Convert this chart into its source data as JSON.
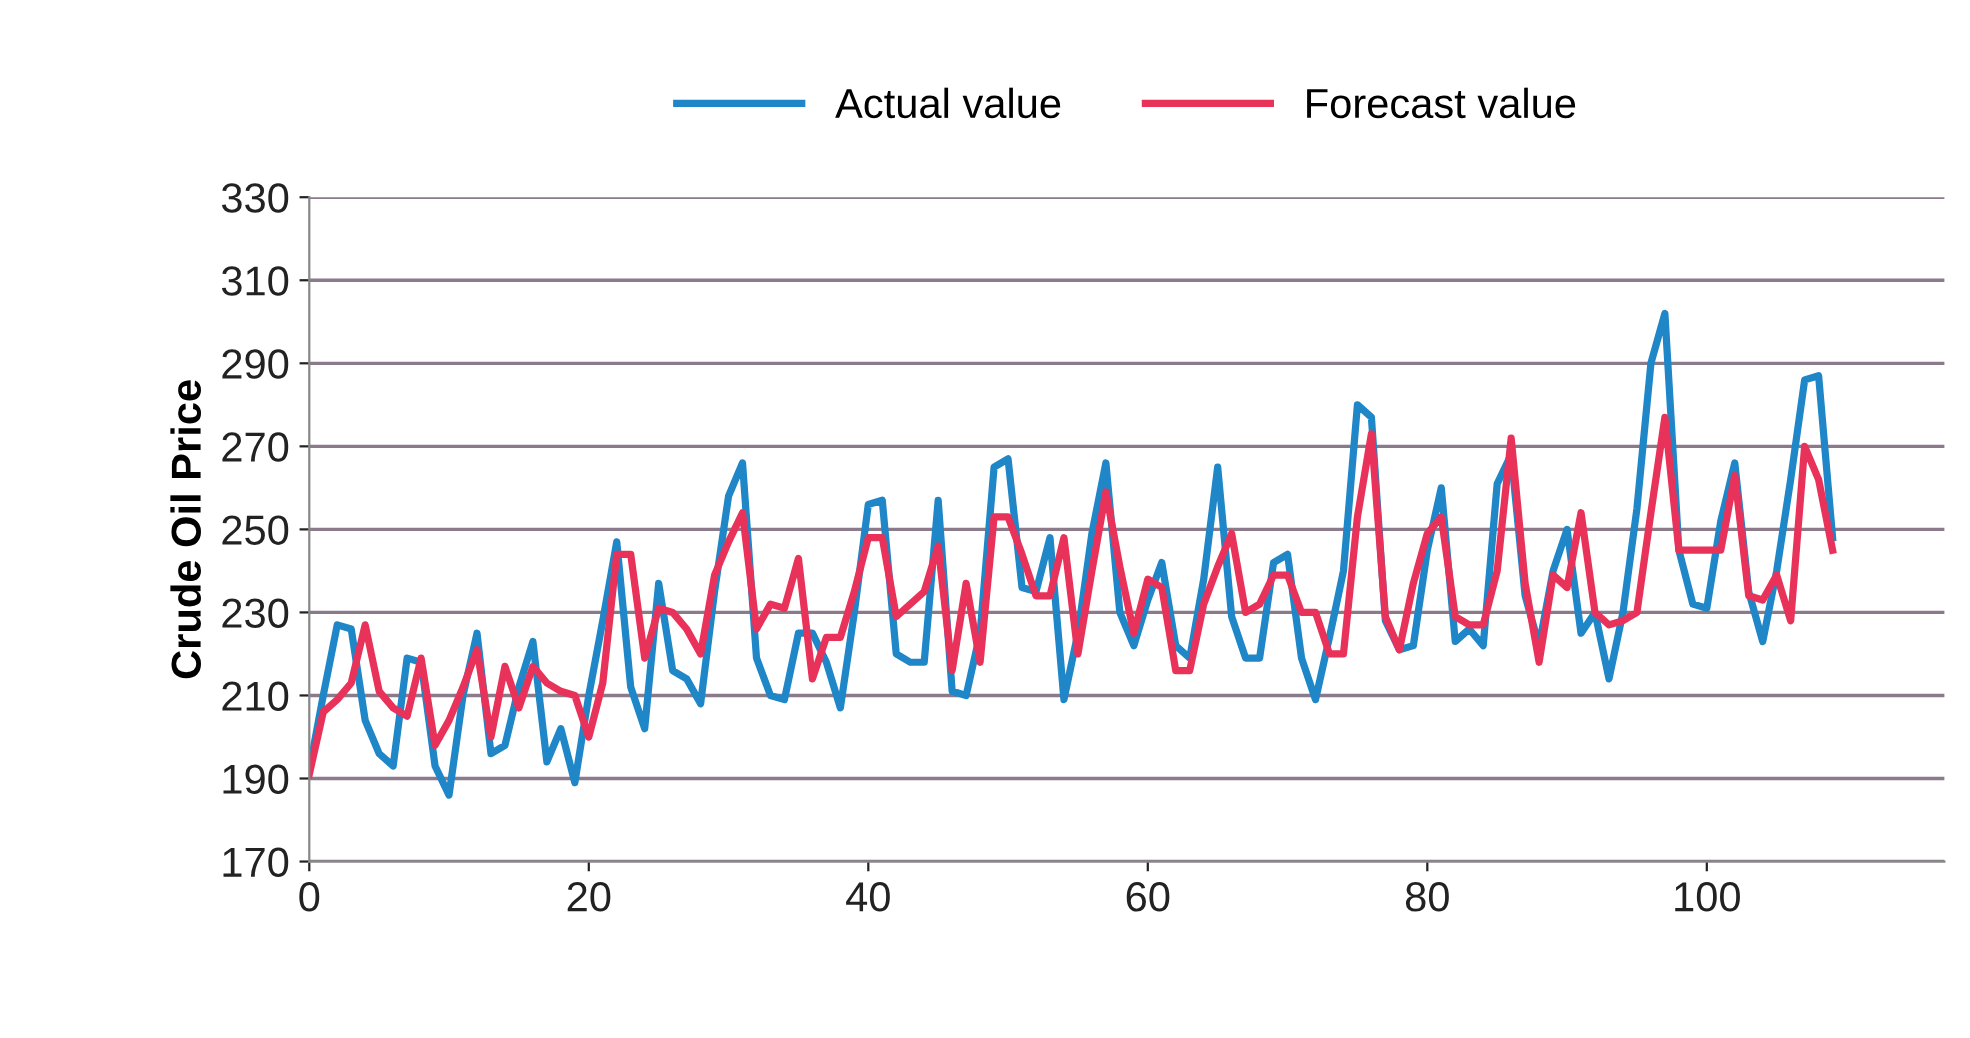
{
  "chart_data": {
    "type": "line",
    "ylabel": "Crude Oil Price",
    "x": [
      0,
      1,
      2,
      3,
      4,
      5,
      6,
      7,
      8,
      9,
      10,
      11,
      12,
      13,
      14,
      15,
      16,
      17,
      18,
      19,
      20,
      21,
      22,
      23,
      24,
      25,
      26,
      27,
      28,
      29,
      30,
      31,
      32,
      33,
      34,
      35,
      36,
      37,
      38,
      39,
      40,
      41,
      42,
      43,
      44,
      45,
      46,
      47,
      48,
      49,
      50,
      51,
      52,
      53,
      54,
      55,
      56,
      57,
      58,
      59,
      60,
      61,
      62,
      63,
      64,
      65,
      66,
      67,
      68,
      69,
      70,
      71,
      72,
      73,
      74,
      75,
      76,
      77,
      78,
      79,
      80,
      81,
      82,
      83,
      84,
      85,
      86,
      87,
      88,
      89,
      90,
      91,
      92,
      93,
      94,
      95,
      96,
      97,
      98,
      99,
      100,
      101,
      102,
      103,
      104,
      105,
      106,
      107,
      108,
      109
    ],
    "series": [
      {
        "name": "Actual value",
        "color": "#1f86c8",
        "values": [
          192,
          210,
          227,
          226,
          204,
          196,
          193,
          219,
          218,
          193,
          186,
          210,
          225,
          196,
          198,
          212,
          223,
          194,
          202,
          189,
          210,
          228,
          247,
          212,
          202,
          237,
          216,
          214,
          208,
          235,
          258,
          266,
          219,
          210,
          209,
          225,
          225,
          218,
          207,
          230,
          256,
          257,
          220,
          218,
          218,
          257,
          211,
          210,
          225,
          265,
          267,
          236,
          235,
          248,
          209,
          225,
          249,
          266,
          230,
          222,
          233,
          242,
          222,
          219,
          238,
          265,
          229,
          219,
          219,
          242,
          244,
          219,
          209,
          224,
          240,
          280,
          277,
          228,
          221,
          222,
          245,
          260,
          223,
          226,
          222,
          261,
          268,
          234,
          222,
          240,
          250,
          225,
          230,
          214,
          230,
          255,
          290,
          302,
          245,
          232,
          231,
          252,
          266,
          235,
          223,
          240,
          262,
          286,
          287,
          248
        ]
      },
      {
        "name": "Forecast value",
        "color": "#e8325a",
        "values": [
          191,
          206,
          209,
          213,
          227,
          211,
          207,
          205,
          219,
          198,
          204,
          212,
          221,
          200,
          217,
          207,
          217,
          213,
          211,
          210,
          200,
          213,
          244,
          244,
          219,
          231,
          230,
          226,
          220,
          239,
          247,
          254,
          226,
          232,
          231,
          243,
          214,
          224,
          224,
          235,
          248,
          248,
          229,
          232,
          235,
          246,
          216,
          237,
          218,
          253,
          253,
          244,
          234,
          234,
          248,
          220,
          240,
          259,
          241,
          225,
          238,
          236,
          216,
          216,
          232,
          241,
          249,
          230,
          232,
          239,
          239,
          230,
          230,
          220,
          220,
          253,
          273,
          229,
          221,
          237,
          249,
          253,
          229,
          227,
          227,
          240,
          272,
          237,
          218,
          239,
          236,
          254,
          230,
          227,
          228,
          230,
          254,
          277,
          245,
          245,
          245,
          245,
          263,
          234,
          233,
          239,
          228,
          270,
          262,
          245
        ]
      }
    ],
    "xlim": [
      0,
      117
    ],
    "xticks": [
      0,
      20,
      40,
      60,
      80,
      100
    ],
    "ylim": [
      170,
      330
    ],
    "yticks": [
      170,
      190,
      210,
      230,
      250,
      270,
      290,
      310,
      330
    ],
    "grid": "y",
    "legend": "top",
    "marker": "none",
    "line_style": "solid"
  }
}
